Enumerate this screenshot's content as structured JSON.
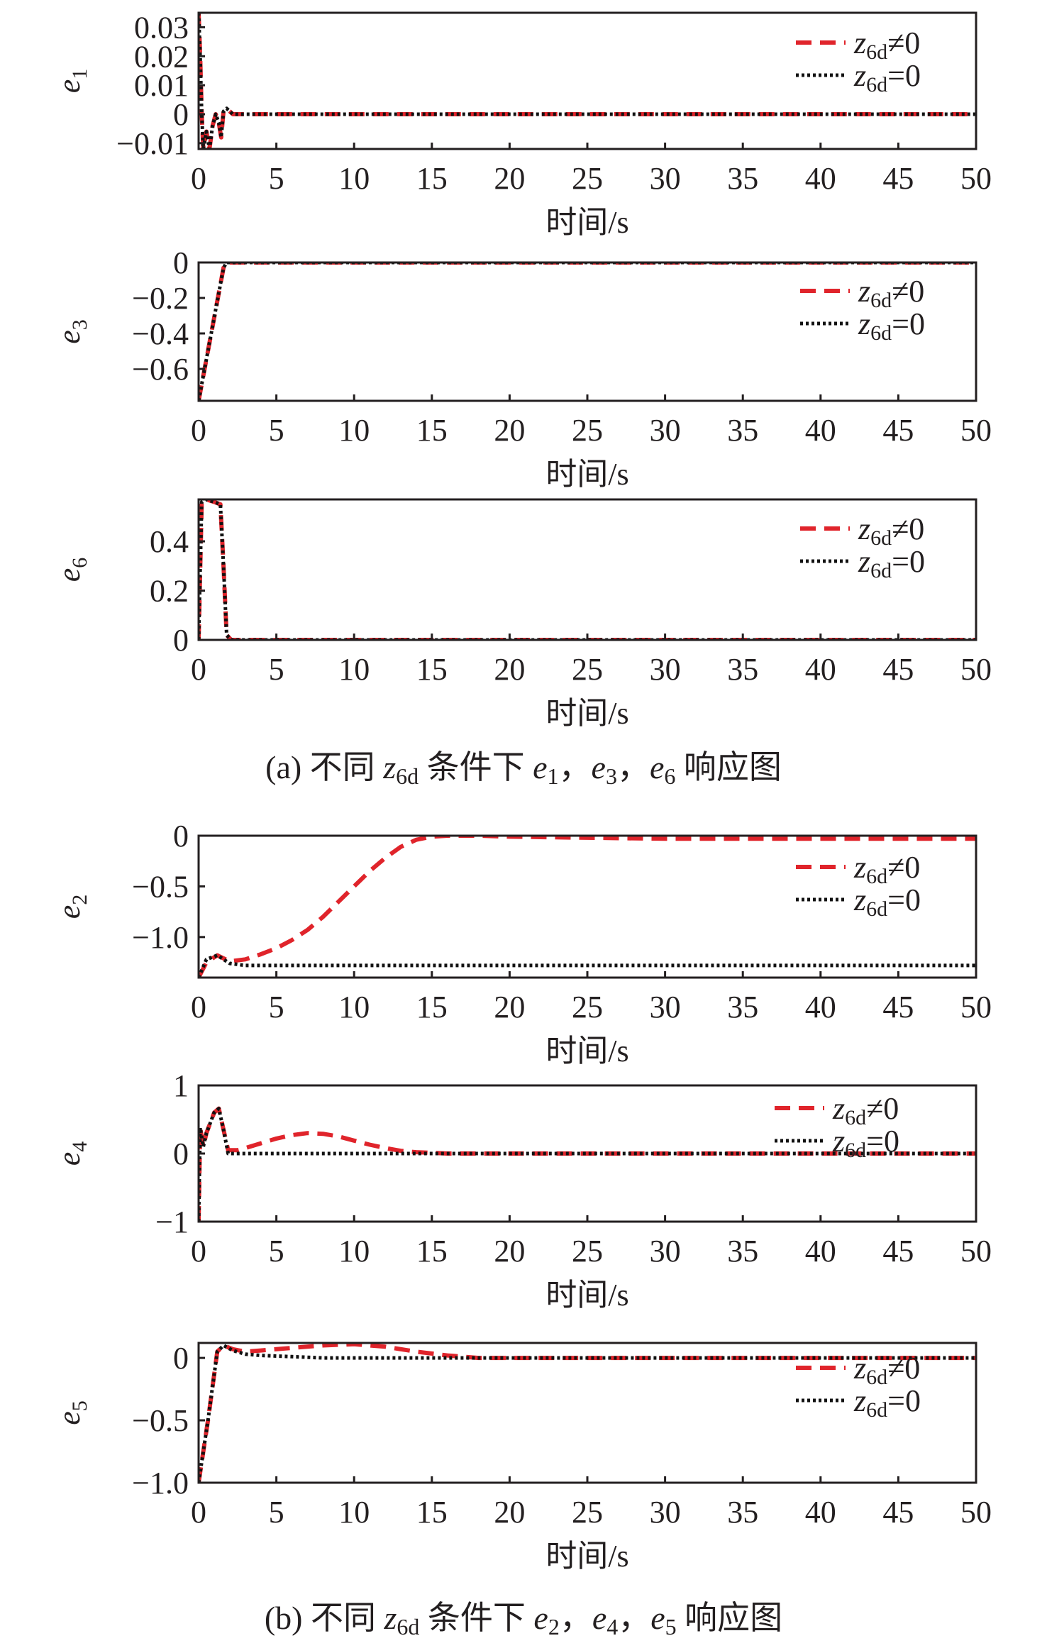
{
  "colors": {
    "nonzero": "#e0242b",
    "zero": "#111111",
    "axis": "#231f20"
  },
  "captions": {
    "a": {
      "prefix": "(a) 不同 ",
      "sym": "z",
      "sub": "6d",
      "mid": " 条件下 ",
      "v1": "e",
      "s1": "1",
      "sep1": "，",
      "v2": "e",
      "s2": "3",
      "sep2": "，",
      "v3": "e",
      "s3": "6",
      "suffix": " 响应图"
    },
    "b": {
      "prefix": "(b) 不同 ",
      "sym": "z",
      "sub": "6d",
      "mid": " 条件下 ",
      "v1": "e",
      "s1": "2",
      "sep1": "，",
      "v2": "e",
      "s2": "4",
      "sep2": "，",
      "v3": "e",
      "s3": "5",
      "suffix": " 响应图"
    }
  },
  "chart_data": [
    {
      "type": "line",
      "ylabel": {
        "var": "e",
        "sub": "1"
      },
      "xlabel": "时间/s",
      "xlim": [
        0,
        50
      ],
      "ylim": [
        -0.012,
        0.035
      ],
      "xticks": [
        0,
        5,
        10,
        15,
        20,
        25,
        30,
        35,
        40,
        45,
        50
      ],
      "yticks": [
        0.03,
        0.02,
        0.01,
        0,
        -0.01
      ],
      "ytick_labels": [
        "0.03",
        "0.02",
        "0.01",
        "0",
        "−0.01"
      ],
      "legend": [
        {
          "var": "z",
          "sub": "6d",
          "rel": "≠0"
        },
        {
          "var": "z",
          "sub": "6d",
          "rel": "=0"
        }
      ],
      "series": [
        {
          "name": "z6d≠0",
          "style": "dashed",
          "x": [
            0,
            0.1,
            0.2,
            0.3,
            0.5,
            0.7,
            0.9,
            1.1,
            1.3,
            1.45,
            1.6,
            1.8,
            2.2,
            3,
            50
          ],
          "y": [
            0.035,
            0.02,
            0,
            -0.012,
            -0.006,
            -0.012,
            -0.004,
            0,
            -0.003,
            -0.008,
            0.001,
            0.002,
            0,
            0,
            0
          ]
        },
        {
          "name": "z6d=0",
          "style": "dotted",
          "x": [
            0,
            0.1,
            0.2,
            0.3,
            0.5,
            0.7,
            0.9,
            1.1,
            1.3,
            1.45,
            1.6,
            1.8,
            2.2,
            3,
            50
          ],
          "y": [
            0.035,
            0.02,
            0,
            -0.012,
            -0.006,
            -0.012,
            -0.004,
            0,
            -0.003,
            -0.008,
            0.001,
            0.002,
            0,
            0,
            0
          ]
        }
      ]
    },
    {
      "type": "line",
      "ylabel": {
        "var": "e",
        "sub": "3"
      },
      "xlabel": "时间/s",
      "xlim": [
        0,
        50
      ],
      "ylim": [
        -0.78,
        0
      ],
      "xticks": [
        0,
        5,
        10,
        15,
        20,
        25,
        30,
        35,
        40,
        45,
        50
      ],
      "yticks": [
        0,
        -0.2,
        -0.4,
        -0.6
      ],
      "ytick_labels": [
        "0",
        "−0.2",
        "−0.4",
        "−0.6"
      ],
      "legend": [
        {
          "var": "z",
          "sub": "6d",
          "rel": "≠0"
        },
        {
          "var": "z",
          "sub": "6d",
          "rel": "=0"
        }
      ],
      "series": [
        {
          "name": "z6d≠0",
          "style": "dashed",
          "x": [
            0,
            1.6,
            1.8,
            50
          ],
          "y": [
            -0.78,
            -0.03,
            0,
            0
          ]
        },
        {
          "name": "z6d=0",
          "style": "dotted",
          "x": [
            0,
            1.6,
            1.8,
            50
          ],
          "y": [
            -0.78,
            -0.03,
            0,
            0
          ]
        }
      ]
    },
    {
      "type": "line",
      "ylabel": {
        "var": "e",
        "sub": "6"
      },
      "xlabel": "时间/s",
      "xlim": [
        0,
        50
      ],
      "ylim": [
        0,
        0.57
      ],
      "xticks": [
        0,
        5,
        10,
        15,
        20,
        25,
        30,
        35,
        40,
        45,
        50
      ],
      "yticks": [
        0.4,
        0.2,
        0
      ],
      "ytick_labels": [
        "0.4",
        "0.2",
        "0"
      ],
      "legend": [
        {
          "var": "z",
          "sub": "6d",
          "rel": "≠0"
        },
        {
          "var": "z",
          "sub": "6d",
          "rel": "=0"
        }
      ],
      "series": [
        {
          "name": "z6d≠0",
          "style": "dashed",
          "x": [
            0,
            0.2,
            0.5,
            1.0,
            1.4,
            1.6,
            1.8,
            2.1,
            50
          ],
          "y": [
            0,
            0.56,
            0.57,
            0.56,
            0.55,
            0.3,
            0.02,
            0,
            0
          ]
        },
        {
          "name": "z6d=0",
          "style": "dotted",
          "x": [
            0,
            0.2,
            0.5,
            1.0,
            1.4,
            1.6,
            1.8,
            2.1,
            50
          ],
          "y": [
            0,
            0.56,
            0.57,
            0.56,
            0.55,
            0.3,
            0.02,
            0,
            0
          ]
        }
      ]
    },
    {
      "type": "line",
      "ylabel": {
        "var": "e",
        "sub": "2"
      },
      "xlabel": "时间/s",
      "xlim": [
        0,
        50
      ],
      "ylim": [
        -1.4,
        0
      ],
      "xticks": [
        0,
        5,
        10,
        15,
        20,
        25,
        30,
        35,
        40,
        45,
        50
      ],
      "yticks": [
        0,
        -0.5,
        -1.0
      ],
      "ytick_labels": [
        "0",
        "−0.5",
        "−1.0"
      ],
      "legend": [
        {
          "var": "z",
          "sub": "6d",
          "rel": "≠0"
        },
        {
          "var": "z",
          "sub": "6d",
          "rel": "=0"
        }
      ],
      "series": [
        {
          "name": "z6d≠0",
          "style": "dashed",
          "x": [
            0,
            0.5,
            1.2,
            2,
            3,
            4,
            5,
            6,
            7,
            8,
            9,
            10,
            11,
            12,
            13,
            14,
            15,
            16,
            18,
            20,
            25,
            30,
            35,
            40,
            45,
            50
          ],
          "y": [
            -1.4,
            -1.25,
            -1.18,
            -1.24,
            -1.22,
            -1.17,
            -1.11,
            -1.03,
            -0.93,
            -0.8,
            -0.65,
            -0.5,
            -0.35,
            -0.22,
            -0.11,
            -0.04,
            -0.01,
            0,
            0,
            -0.01,
            -0.02,
            -0.03,
            -0.03,
            -0.03,
            -0.03,
            -0.03
          ]
        },
        {
          "name": "z6d=0",
          "style": "dotted",
          "x": [
            0,
            0.5,
            1.2,
            2,
            3,
            5,
            10,
            20,
            30,
            40,
            50
          ],
          "y": [
            -1.4,
            -1.22,
            -1.18,
            -1.26,
            -1.28,
            -1.28,
            -1.28,
            -1.28,
            -1.28,
            -1.28,
            -1.28
          ]
        }
      ]
    },
    {
      "type": "line",
      "ylabel": {
        "var": "e",
        "sub": "4"
      },
      "xlabel": "时间/s",
      "xlim": [
        0,
        50
      ],
      "ylim": [
        -1,
        1
      ],
      "xticks": [
        0,
        5,
        10,
        15,
        20,
        25,
        30,
        35,
        40,
        45,
        50
      ],
      "yticks": [
        1,
        0,
        -1
      ],
      "ytick_labels": [
        "1",
        "0",
        "−1"
      ],
      "legend": [
        {
          "var": "z",
          "sub": "6d",
          "rel": "≠0"
        },
        {
          "var": "z",
          "sub": "6d",
          "rel": "=0"
        }
      ],
      "series": [
        {
          "name": "z6d≠0",
          "style": "dashed",
          "x": [
            0,
            0.1,
            0.3,
            0.5,
            1.0,
            1.3,
            1.6,
            1.9,
            2.5,
            3,
            4,
            5,
            6,
            7,
            8,
            9,
            10,
            11,
            12,
            13,
            14,
            15,
            16,
            18,
            50
          ],
          "y": [
            -1,
            0.38,
            0.1,
            0.3,
            0.6,
            0.66,
            0.35,
            0.05,
            0.05,
            0.08,
            0.15,
            0.22,
            0.27,
            0.3,
            0.29,
            0.25,
            0.19,
            0.13,
            0.08,
            0.04,
            0.02,
            0.01,
            0,
            0,
            0
          ]
        },
        {
          "name": "z6d=0",
          "style": "dotted",
          "x": [
            0,
            0.1,
            0.3,
            0.5,
            1.0,
            1.3,
            1.6,
            1.9,
            2.5,
            50
          ],
          "y": [
            -1,
            0.38,
            0.1,
            0.3,
            0.6,
            0.66,
            0.35,
            0,
            0,
            0
          ]
        }
      ]
    },
    {
      "type": "line",
      "ylabel": {
        "var": "e",
        "sub": "5"
      },
      "xlabel": "时间/s",
      "xlim": [
        0,
        50
      ],
      "ylim": [
        -1.0,
        0.12
      ],
      "xticks": [
        0,
        5,
        10,
        15,
        20,
        25,
        30,
        35,
        40,
        45,
        50
      ],
      "yticks": [
        0,
        -0.5,
        -1.0
      ],
      "ytick_labels": [
        "0",
        "−0.5",
        "−1.0"
      ],
      "legend": [
        {
          "var": "z",
          "sub": "6d",
          "rel": "≠0"
        },
        {
          "var": "z",
          "sub": "6d",
          "rel": "=0"
        }
      ],
      "series": [
        {
          "name": "z6d≠0",
          "style": "dashed",
          "x": [
            0,
            0.6,
            1.2,
            1.6,
            2.2,
            3,
            4,
            6,
            8,
            10,
            12,
            14,
            16,
            18,
            20,
            50
          ],
          "y": [
            -1.0,
            -0.5,
            0.05,
            0.1,
            0.07,
            0.05,
            0.06,
            0.08,
            0.1,
            0.11,
            0.09,
            0.05,
            0.02,
            0,
            0,
            0
          ]
        },
        {
          "name": "z6d=0",
          "style": "dotted",
          "x": [
            0,
            0.6,
            1.2,
            1.6,
            2.2,
            3,
            4,
            6,
            8,
            10,
            15,
            20,
            50
          ],
          "y": [
            -1.0,
            -0.5,
            0.05,
            0.1,
            0.06,
            0.03,
            0.02,
            0.01,
            0,
            0,
            0,
            0,
            0
          ]
        }
      ]
    }
  ]
}
